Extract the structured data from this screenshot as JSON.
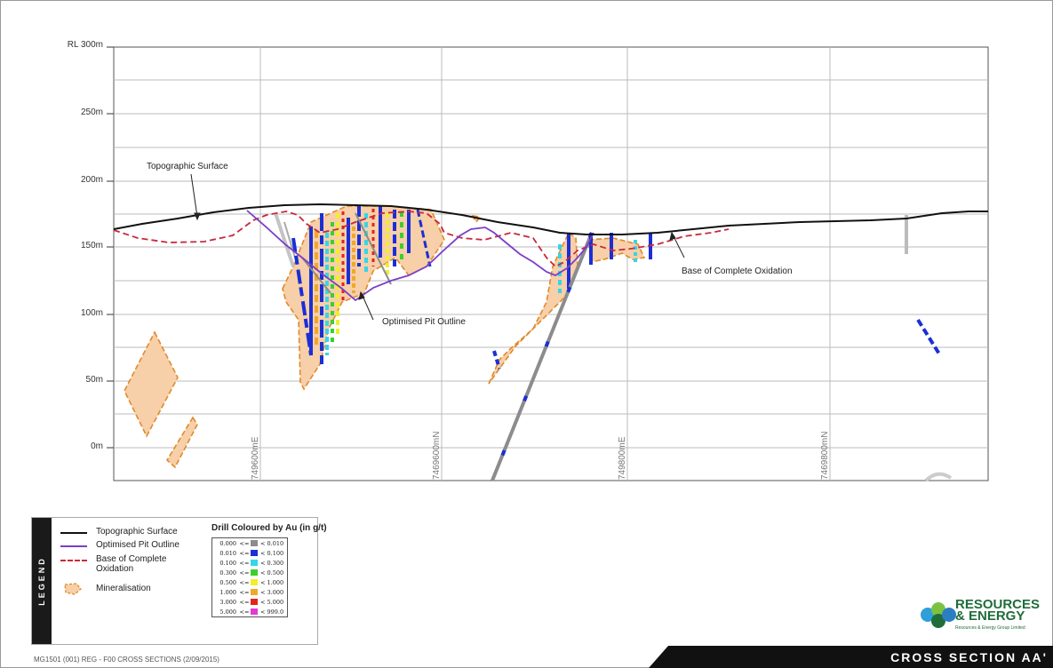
{
  "section": {
    "y_axis_labels": [
      "RL 300m",
      "250m",
      "200m",
      "150m",
      "100m",
      "50m",
      "0m"
    ],
    "northing_labels": [
      "749600mE",
      "7469600mN",
      "749800mE",
      "7469800mN"
    ],
    "annotations": {
      "topographic_surface": "Topographic Surface",
      "base_complete_oxidation": "Base of Complete Oxidation",
      "optimised_pit_outline": "Optimised Pit Outline"
    }
  },
  "legend": {
    "tab_label": "LEGEND",
    "items": [
      {
        "label": "Topographic Surface"
      },
      {
        "label": "Optimised Pit Outline"
      },
      {
        "label": "Base of Complete Oxidation"
      },
      {
        "label": "Mineralisation"
      }
    ],
    "drill": {
      "title": "Drill Coloured by Au (in g/t)",
      "rows": [
        {
          "low": "0.000",
          "op": "<=",
          "high": "< 0.010",
          "color": "#8c8c8c"
        },
        {
          "low": "0.010",
          "op": "<=",
          "high": "< 0.100",
          "color": "#1a2fd6"
        },
        {
          "low": "0.100",
          "op": "<=",
          "high": "< 0.300",
          "color": "#35d6e8"
        },
        {
          "low": "0.300",
          "op": "<=",
          "high": "< 0.500",
          "color": "#3ccf2c"
        },
        {
          "low": "0.500",
          "op": "<=",
          "high": "< 1.000",
          "color": "#f2ee2a"
        },
        {
          "low": "1.000",
          "op": "<=",
          "high": "< 3.000",
          "color": "#f2a62a"
        },
        {
          "low": "3.000",
          "op": "<=",
          "high": "< 5.000",
          "color": "#e0261e"
        },
        {
          "low": "5.000",
          "op": "<=",
          "high": "< 999.0",
          "color": "#e23ad6"
        }
      ]
    }
  },
  "colors": {
    "topo": "#111111",
    "pit": "#7a3fc8",
    "oxidation": "#c8283c",
    "mineralisation_fill": "#f7cfa8",
    "mineralisation_edge": "#e08a2c"
  },
  "brand": {
    "name_line1": "RESOURCES",
    "name_line2": "& ENERGY",
    "subtitle": "Resources & Energy Group Limited"
  },
  "footer": {
    "left": "MG1501 (001) REG - F00 CROSS SECTIONS (2/09/2015)",
    "title": "CROSS SECTION AA'"
  }
}
